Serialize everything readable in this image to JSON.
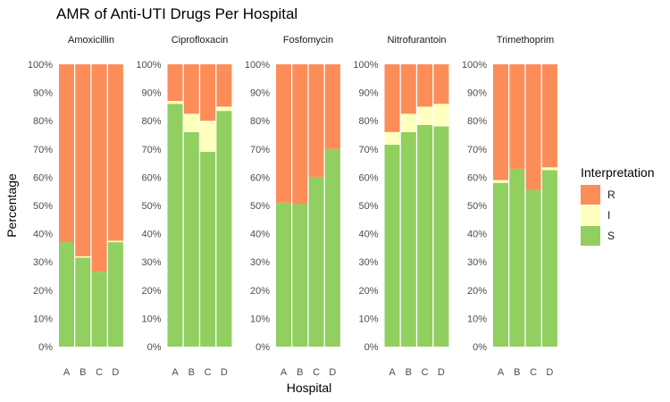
{
  "chart_data": {
    "type": "bar",
    "title": "AMR of Anti-UTI Drugs Per Hospital",
    "xlabel": "Hospital",
    "ylabel": "Percentage",
    "ylim": [
      0,
      100
    ],
    "y_ticks": [
      "0%",
      "10%",
      "20%",
      "30%",
      "40%",
      "50%",
      "60%",
      "70%",
      "80%",
      "90%",
      "100%"
    ],
    "categories": [
      "A",
      "B",
      "C",
      "D"
    ],
    "stacked": true,
    "legend": {
      "title": "Interpretation",
      "position": "right",
      "items": [
        {
          "label": "R",
          "color": "#FC8D59"
        },
        {
          "label": "I",
          "color": "#FFFFBF"
        },
        {
          "label": "S",
          "color": "#91CF60"
        }
      ]
    },
    "facets": [
      {
        "name": "Amoxicillin",
        "series": [
          {
            "name": "S",
            "values": [
              37,
              31.5,
              26.5,
              37
            ]
          },
          {
            "name": "I",
            "values": [
              0,
              0.5,
              0,
              0.5
            ]
          },
          {
            "name": "R",
            "values": [
              63,
              68,
              73.5,
              62.5
            ]
          }
        ]
      },
      {
        "name": "Ciprofloxacin",
        "series": [
          {
            "name": "S",
            "values": [
              86,
              76,
              69,
              83.5
            ]
          },
          {
            "name": "I",
            "values": [
              1,
              6.5,
              11,
              1.5
            ]
          },
          {
            "name": "R",
            "values": [
              13,
              17.5,
              20,
              15
            ]
          }
        ]
      },
      {
        "name": "Fosfomycin",
        "series": [
          {
            "name": "S",
            "values": [
              51,
              50.5,
              60,
              70
            ]
          },
          {
            "name": "I",
            "values": [
              0,
              0,
              0,
              0
            ]
          },
          {
            "name": "R",
            "values": [
              49,
              49.5,
              40,
              30
            ]
          }
        ]
      },
      {
        "name": "Nitrofurantoin",
        "series": [
          {
            "name": "S",
            "values": [
              71.5,
              76,
              78.5,
              78
            ]
          },
          {
            "name": "I",
            "values": [
              4.5,
              6.5,
              6.5,
              8
            ]
          },
          {
            "name": "R",
            "values": [
              24,
              17.5,
              15,
              14
            ]
          }
        ]
      },
      {
        "name": "Trimethoprim",
        "series": [
          {
            "name": "S",
            "values": [
              58,
              63,
              55.5,
              62.5
            ]
          },
          {
            "name": "I",
            "values": [
              1,
              0,
              0,
              1
            ]
          },
          {
            "name": "R",
            "values": [
              41,
              37,
              44.5,
              36.5
            ]
          }
        ]
      }
    ]
  }
}
